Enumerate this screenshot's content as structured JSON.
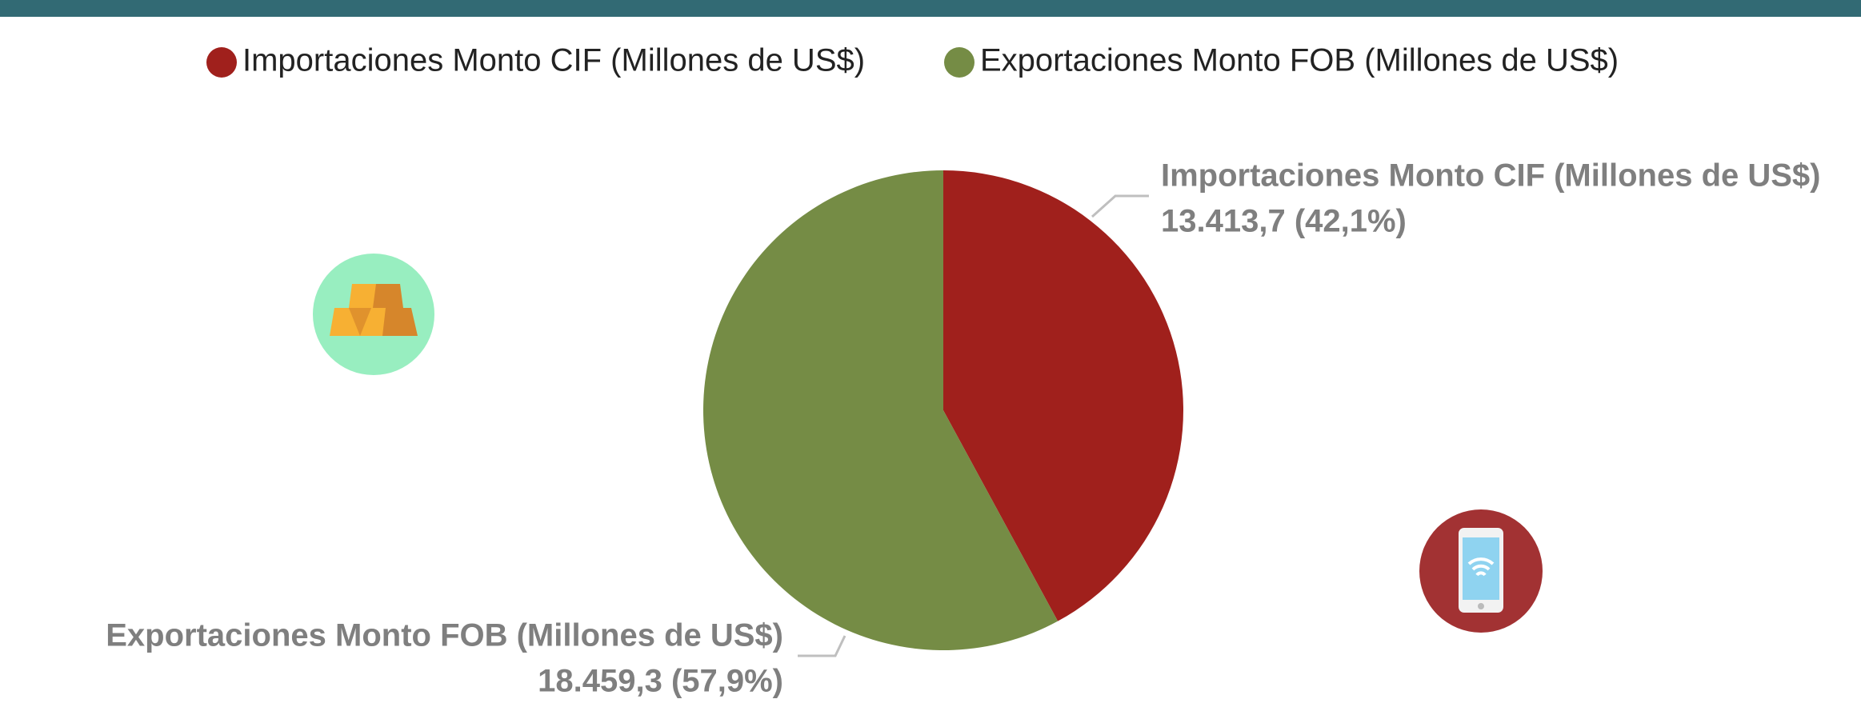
{
  "chart_data": {
    "type": "pie",
    "categories": [
      "Importaciones Monto CIF (Millones de US$)",
      "Exportaciones Monto FOB (Millones de US$)"
    ],
    "values": [
      13413.7,
      18459.3
    ],
    "value_labels": [
      "13.413,7 (42,1%)",
      "18.459,3 (57,9%)"
    ],
    "colors": [
      "#a0201c",
      "#758c45"
    ],
    "legend": "top"
  }
}
